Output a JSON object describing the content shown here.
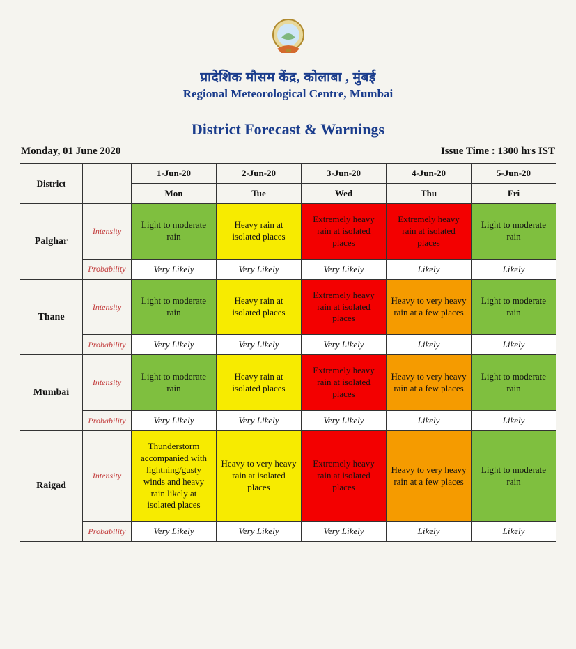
{
  "header": {
    "title_hi": "प्रादेशिक मौसम केंद्र,  कोलाबा ,  मुंबई",
    "title_en": "Regional Meteorological Centre, Mumbai",
    "subtitle": "District Forecast & Warnings",
    "date_label": "Monday, 01 June 2020",
    "issue_label": "Issue Time : 1300 hrs IST"
  },
  "colors": {
    "green": "#7fbf3f",
    "yellow": "#f7eb00",
    "red": "#f30000",
    "orange": "#f59b00",
    "header_bg": "#f5f4ef",
    "prob_bg": "#ffffff",
    "border": "#333333",
    "title_color": "#1a3c8c",
    "row_label_color": "#c23b3b"
  },
  "table": {
    "district_header": "District",
    "row_labels": {
      "intensity": "Intensity",
      "probability": "Probability"
    },
    "columns": [
      {
        "date": "1-Jun-20",
        "day": "Mon"
      },
      {
        "date": "2-Jun-20",
        "day": "Tue"
      },
      {
        "date": "3-Jun-20",
        "day": "Wed"
      },
      {
        "date": "4-Jun-20",
        "day": "Thu"
      },
      {
        "date": "5-Jun-20",
        "day": "Fri"
      }
    ],
    "districts": [
      {
        "name": "Palghar",
        "intensity": [
          {
            "text": "Light to moderate rain",
            "color": "green"
          },
          {
            "text": "Heavy rain at isolated places",
            "color": "yellow"
          },
          {
            "text": "Extremely heavy rain at isolated places",
            "color": "red"
          },
          {
            "text": "Extremely heavy rain at isolated places",
            "color": "red"
          },
          {
            "text": "Light to moderate rain",
            "color": "green"
          }
        ],
        "probability": [
          "Very Likely",
          "Very Likely",
          "Very Likely",
          "Likely",
          "Likely"
        ]
      },
      {
        "name": "Thane",
        "intensity": [
          {
            "text": "Light to moderate rain",
            "color": "green"
          },
          {
            "text": "Heavy rain at isolated places",
            "color": "yellow"
          },
          {
            "text": "Extremely heavy rain at isolated places",
            "color": "red"
          },
          {
            "text": "Heavy to very heavy rain at a few places",
            "color": "orange"
          },
          {
            "text": "Light to moderate rain",
            "color": "green"
          }
        ],
        "probability": [
          "Very Likely",
          "Very Likely",
          "Very Likely",
          "Likely",
          "Likely"
        ]
      },
      {
        "name": "Mumbai",
        "intensity": [
          {
            "text": "Light to moderate rain",
            "color": "green"
          },
          {
            "text": "Heavy rain at isolated places",
            "color": "yellow"
          },
          {
            "text": "Extremely heavy rain at isolated places",
            "color": "red"
          },
          {
            "text": "Heavy to very heavy rain at a few places",
            "color": "orange"
          },
          {
            "text": "Light to moderate rain",
            "color": "green"
          }
        ],
        "probability": [
          "Very Likely",
          "Very Likely",
          "Very Likely",
          "Likely",
          "Likely"
        ]
      },
      {
        "name": "Raigad",
        "intensity": [
          {
            "text": "Thunderstorm accompanied with lightning/gusty winds and heavy rain likely at isolated places",
            "color": "yellow"
          },
          {
            "text": "Heavy to very heavy rain at isolated places",
            "color": "yellow"
          },
          {
            "text": "Extremely heavy rain at isolated places",
            "color": "red"
          },
          {
            "text": "Heavy to very heavy rain at a few places",
            "color": "orange"
          },
          {
            "text": "Light to moderate rain",
            "color": "green"
          }
        ],
        "probability": [
          "Very Likely",
          "Very Likely",
          "Very Likely",
          "Likely",
          "Likely"
        ]
      }
    ]
  }
}
